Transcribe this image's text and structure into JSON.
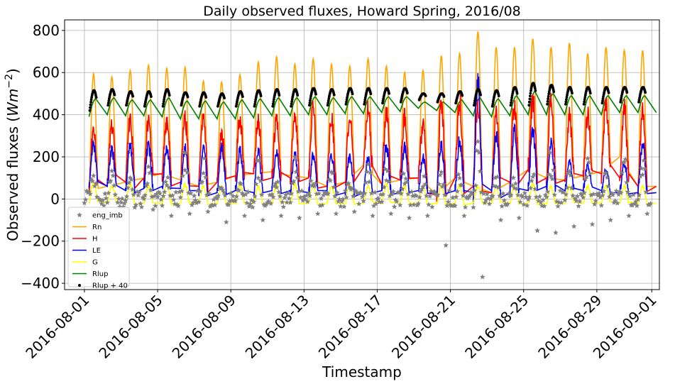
{
  "chart_data": {
    "type": "line",
    "title": "Daily observed fluxes, Howard Spring, 2016/08",
    "xlabel": "Timestamp",
    "ylabel_main": "Observed fluxes (",
    "ylabel_unit": "Wm",
    "ylabel_exp": "−2",
    "ylabel_close": ")",
    "xlim": [
      "2016-07-30T22:00",
      "2016-09-01T10:00"
    ],
    "ylim": [
      -430,
      850
    ],
    "y_ticks": [
      -400,
      -200,
      0,
      200,
      400,
      600,
      800
    ],
    "y_tick_labels": [
      "−400",
      "−200",
      "0",
      "200",
      "400",
      "600",
      "800"
    ],
    "x_ticks": [
      "2016-08-01",
      "2016-08-05",
      "2016-08-09",
      "2016-08-13",
      "2016-08-17",
      "2016-08-21",
      "2016-08-25",
      "2016-08-29",
      "2016-09-01"
    ],
    "x_tick_labels": [
      "2016-08-01",
      "2016-08-05",
      "2016-08-09",
      "2016-08-13",
      "2016-08-17",
      "2016-08-21",
      "2016-08-25",
      "2016-08-29",
      "2016-09-01"
    ],
    "grid": true,
    "legend_position": "lower-left",
    "days": [
      "2016-08-01",
      "2016-08-02",
      "2016-08-03",
      "2016-08-04",
      "2016-08-05",
      "2016-08-06",
      "2016-08-07",
      "2016-08-08",
      "2016-08-09",
      "2016-08-10",
      "2016-08-11",
      "2016-08-12",
      "2016-08-13",
      "2016-08-14",
      "2016-08-15",
      "2016-08-16",
      "2016-08-17",
      "2016-08-18",
      "2016-08-19",
      "2016-08-20",
      "2016-08-21",
      "2016-08-22",
      "2016-08-23",
      "2016-08-24",
      "2016-08-25",
      "2016-08-26",
      "2016-08-27",
      "2016-08-28",
      "2016-08-29",
      "2016-08-30",
      "2016-08-31"
    ],
    "series": [
      {
        "name": "eng_imb",
        "type": "scatter",
        "color": "#808080",
        "marker": "star",
        "daily_midday_peak": [
          150,
          230,
          130,
          140,
          120,
          230,
          210,
          120,
          110,
          190,
          110,
          210,
          150,
          160,
          110,
          200,
          150,
          160,
          110,
          130,
          130,
          270,
          120,
          120,
          120,
          240,
          130,
          200,
          130,
          200,
          250
        ],
        "daily_min": [
          -60,
          -90,
          -40,
          -50,
          -80,
          -70,
          -60,
          -110,
          -80,
          -100,
          -80,
          -90,
          -70,
          -70,
          -60,
          -80,
          -70,
          -90,
          -80,
          -220,
          -80,
          -370,
          -100,
          -90,
          -150,
          -160,
          -130,
          -120,
          -100,
          -80,
          -70
        ]
      },
      {
        "name": "Rn",
        "type": "line",
        "color": "#ffa500",
        "daily_max": [
          595,
          580,
          610,
          635,
          620,
          625,
          560,
          555,
          590,
          650,
          675,
          640,
          665,
          640,
          630,
          665,
          630,
          600,
          610,
          680,
          690,
          795,
          720,
          720,
          760,
          720,
          740,
          690,
          720,
          705,
          705
        ],
        "night": [
          40,
          60,
          80,
          100,
          120,
          90,
          60,
          80,
          110,
          120,
          130,
          110,
          100,
          60,
          80,
          160,
          70,
          90,
          100,
          20,
          100,
          60,
          30,
          80,
          140,
          100,
          90,
          110,
          130,
          200,
          60
        ]
      },
      {
        "name": "H",
        "type": "line",
        "color": "#ff0000",
        "daily_max": [
          330,
          350,
          380,
          360,
          370,
          380,
          390,
          310,
          380,
          370,
          380,
          380,
          420,
          380,
          380,
          420,
          410,
          390,
          350,
          440,
          460,
          440,
          400,
          440,
          470,
          470,
          390,
          400,
          440,
          430,
          420
        ],
        "night": [
          40,
          60,
          80,
          100,
          120,
          80,
          60,
          80,
          110,
          120,
          100,
          100,
          100,
          60,
          80,
          150,
          70,
          90,
          100,
          20,
          100,
          60,
          30,
          80,
          140,
          100,
          90,
          110,
          120,
          100,
          60
        ]
      },
      {
        "name": "LE",
        "type": "line",
        "color": "#0000ff",
        "daily_max": [
          250,
          230,
          250,
          250,
          240,
          240,
          240,
          240,
          230,
          220,
          220,
          210,
          210,
          210,
          200,
          200,
          250,
          250,
          200,
          250,
          280,
          570,
          300,
          330,
          320,
          270,
          180,
          160,
          140,
          170,
          260
        ],
        "night": [
          50,
          60,
          40,
          50,
          60,
          50,
          40,
          30,
          40,
          30,
          40,
          40,
          30,
          40,
          30,
          30,
          40,
          30,
          40,
          30,
          40,
          30,
          40,
          30,
          40,
          60,
          40,
          40,
          40,
          30,
          30
        ]
      },
      {
        "name": "G",
        "type": "line",
        "color": "#ffff00",
        "daily_max": [
          80,
          60,
          70,
          60,
          70,
          70,
          60,
          60,
          70,
          60,
          70,
          70,
          70,
          60,
          70,
          60,
          70,
          60,
          60,
          60,
          70,
          60,
          60,
          60,
          70,
          60,
          60,
          60,
          60,
          60,
          60
        ],
        "night": [
          -20,
          -20,
          -20,
          -20,
          -20,
          -20,
          -20,
          -20,
          -20,
          -20,
          -20,
          -20,
          -20,
          -20,
          -20,
          -20,
          -20,
          -20,
          -20,
          -20,
          -20,
          -20,
          -20,
          -20,
          -20,
          -20,
          -20,
          -20,
          -20,
          -20,
          -20
        ]
      },
      {
        "name": "Rlup",
        "type": "line",
        "color": "#008000",
        "daily_max": [
          475,
          480,
          470,
          470,
          480,
          465,
          465,
          460,
          470,
          475,
          480,
          480,
          485,
          480,
          485,
          485,
          485,
          485,
          460,
          460,
          470,
          480,
          475,
          490,
          510,
          500,
          490,
          490,
          490,
          490,
          490
        ],
        "night": [
          390,
          400,
          395,
          395,
          390,
          380,
          380,
          380,
          380,
          385,
          395,
          395,
          400,
          400,
          405,
          405,
          410,
          415,
          430,
          420,
          410,
          395,
          390,
          395,
          400,
          400,
          400,
          400,
          400,
          410,
          410
        ]
      },
      {
        "name": "Rlup + 40",
        "type": "scatter",
        "color": "#000000",
        "marker": "dot",
        "daily_max": [
          515,
          520,
          510,
          510,
          520,
          505,
          505,
          500,
          510,
          515,
          520,
          520,
          525,
          520,
          525,
          525,
          525,
          525,
          500,
          500,
          510,
          520,
          515,
          530,
          550,
          540,
          530,
          530,
          530,
          530,
          530
        ],
        "daily_start": [
          420,
          445,
          445,
          440,
          440,
          445,
          440,
          440,
          440,
          440,
          440,
          440,
          445,
          445,
          450,
          450,
          455,
          460,
          470,
          460,
          455,
          445,
          440,
          445,
          445,
          450,
          450,
          450,
          455,
          460,
          460
        ]
      }
    ]
  }
}
